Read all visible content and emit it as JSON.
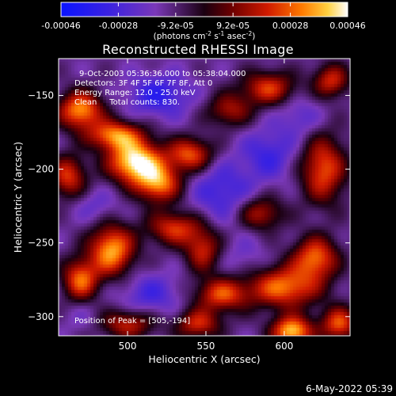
{
  "chart_data": {
    "type": "heatmap",
    "title": "Reconstructed RHESSI Image",
    "xlabel": "Heliocentric X (arcsec)",
    "ylabel": "Heliocentric Y (arcsec)",
    "xlim": [
      456,
      642
    ],
    "ylim": [
      -313,
      -125
    ],
    "x_ticks": [
      500,
      550,
      600
    ],
    "y_ticks": [
      -150,
      -200,
      -250,
      -300
    ],
    "colorbar": {
      "min": -0.00046,
      "max": 0.00046,
      "ticks": [
        "-0.00046",
        "-0.00028",
        "-9.2e-05",
        "9.2e-05",
        "0.00028",
        "0.00046"
      ],
      "units_label": "(photons cm",
      "units_exp1": "-2",
      "units_mid": " s",
      "units_exp2": "-1",
      "units_tail": " asec",
      "units_exp3": "-2",
      "units_close": ")"
    },
    "annotations": {
      "time_range": "9-Oct-2003 05:36:36.000 to 05:38:04.000",
      "detectors": "Detectors: 3F 4F 5F 6F 7F 8F, Att 0",
      "energy": "Energy Range: 12.0 - 25.0 keV",
      "clean": "Clean     Total counts: 830.",
      "peak": "Position of Peak = [505,-194]"
    },
    "peak": {
      "x": 505,
      "y": -194
    },
    "hotspots": [
      {
        "x": 505,
        "y": -195,
        "value": 0.00046,
        "sx": 12,
        "sy": 10
      },
      {
        "x": 470,
        "y": -160,
        "value": 0.00034,
        "sx": 10,
        "sy": 9
      },
      {
        "x": 492,
        "y": -177,
        "value": 0.0003,
        "sx": 12,
        "sy": 7
      },
      {
        "x": 520,
        "y": -210,
        "value": 0.0003,
        "sx": 10,
        "sy": 9
      },
      {
        "x": 540,
        "y": -190,
        "value": 0.00026,
        "sx": 10,
        "sy": 8
      },
      {
        "x": 462,
        "y": -205,
        "value": 0.00022,
        "sx": 8,
        "sy": 10
      },
      {
        "x": 490,
        "y": -255,
        "value": 0.00036,
        "sx": 10,
        "sy": 12
      },
      {
        "x": 470,
        "y": -275,
        "value": 0.00028,
        "sx": 8,
        "sy": 10
      },
      {
        "x": 530,
        "y": -240,
        "value": 0.00022,
        "sx": 12,
        "sy": 8
      },
      {
        "x": 600,
        "y": -280,
        "value": 0.0003,
        "sx": 16,
        "sy": 10
      },
      {
        "x": 620,
        "y": -260,
        "value": 0.00028,
        "sx": 10,
        "sy": 10
      },
      {
        "x": 560,
        "y": -285,
        "value": 0.00024,
        "sx": 12,
        "sy": 8
      },
      {
        "x": 605,
        "y": -310,
        "value": 0.0004,
        "sx": 9,
        "sy": 7
      },
      {
        "x": 635,
        "y": -305,
        "value": 0.00026,
        "sx": 8,
        "sy": 8
      },
      {
        "x": 545,
        "y": -305,
        "value": 0.0002,
        "sx": 10,
        "sy": 7
      },
      {
        "x": 500,
        "y": -305,
        "value": 0.00018,
        "sx": 12,
        "sy": 7
      },
      {
        "x": 625,
        "y": -200,
        "value": 0.00026,
        "sx": 10,
        "sy": 16
      },
      {
        "x": 590,
        "y": -145,
        "value": 0.00022,
        "sx": 12,
        "sy": 8
      },
      {
        "x": 630,
        "y": -140,
        "value": 0.0002,
        "sx": 8,
        "sy": 8
      },
      {
        "x": 565,
        "y": -160,
        "value": 0.00014,
        "sx": 10,
        "sy": 8
      },
      {
        "x": 548,
        "y": -255,
        "value": 0.00018,
        "sx": 8,
        "sy": 10
      },
      {
        "x": 585,
        "y": -230,
        "value": 0.00016,
        "sx": 10,
        "sy": 8
      },
      {
        "x": 520,
        "y": -150,
        "value": -0.00034,
        "sx": 14,
        "sy": 10
      },
      {
        "x": 560,
        "y": -215,
        "value": -0.0003,
        "sx": 14,
        "sy": 14
      },
      {
        "x": 515,
        "y": -285,
        "value": -0.00028,
        "sx": 14,
        "sy": 10
      },
      {
        "x": 590,
        "y": -190,
        "value": -0.0003,
        "sx": 12,
        "sy": 12
      },
      {
        "x": 610,
        "y": -165,
        "value": -0.00024,
        "sx": 10,
        "sy": 10
      },
      {
        "x": 480,
        "y": -225,
        "value": -0.00022,
        "sx": 10,
        "sy": 8
      },
      {
        "x": 575,
        "y": -260,
        "value": -0.0002,
        "sx": 10,
        "sy": 10
      },
      {
        "x": 470,
        "y": -300,
        "value": -0.00018,
        "sx": 8,
        "sy": 8
      }
    ]
  },
  "footer": {
    "date": "6-May-2022 05:39"
  }
}
